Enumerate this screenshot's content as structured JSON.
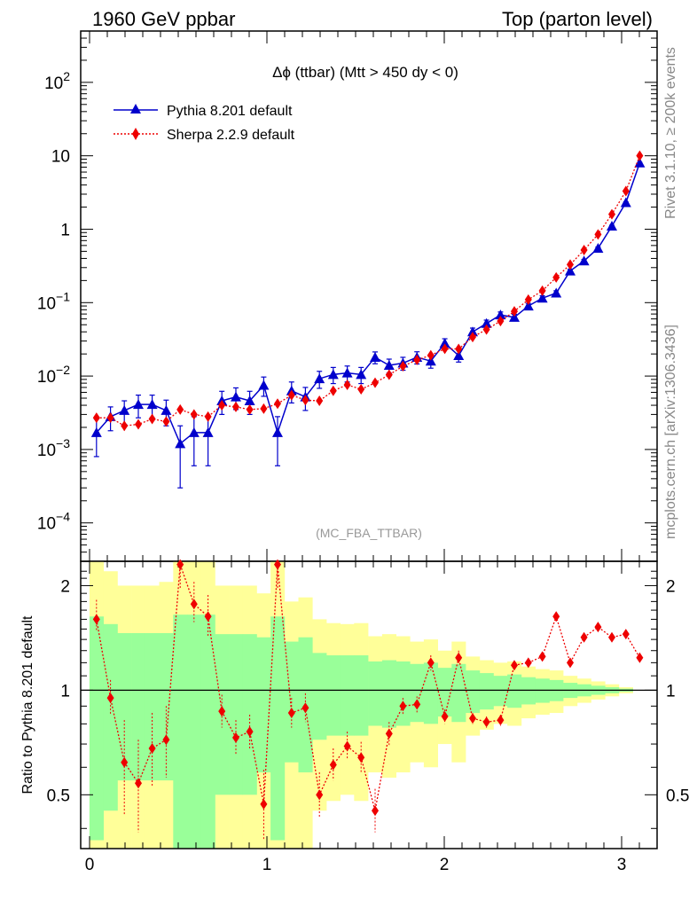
{
  "header": {
    "left_label": "1960 GeV ppbar",
    "right_label": "Top (parton level)"
  },
  "side_labels": {
    "upper": "Rivet 3.1.10, ≥ 200k events",
    "lower": "mcplots.cern.ch [arXiv:1306.3436]"
  },
  "colors": {
    "pythia": "#0000cc",
    "sherpa": "#ee0000",
    "band_inner": "#99ff99",
    "band_outer": "#ffff99"
  },
  "chart_data": [
    {
      "type": "line",
      "title": "Δϕ (ttbar) (Mtt > 450 dy < 0)",
      "watermark": "(MC_FBA_TTBAR)",
      "y_scale": "log",
      "xlim": [
        -0.05,
        3.2
      ],
      "ylim": [
        3e-05,
        500
      ],
      "legend_placement": "top-left",
      "y_ticks": [
        {
          "value": 0.0001,
          "label": "10",
          "exp": "−4"
        },
        {
          "value": 0.001,
          "label": "10",
          "exp": "−3"
        },
        {
          "value": 0.01,
          "label": "10",
          "exp": "−2"
        },
        {
          "value": 0.1,
          "label": "10",
          "exp": "−1"
        },
        {
          "value": 1,
          "label": "1",
          "exp": ""
        },
        {
          "value": 10,
          "label": "10",
          "exp": ""
        },
        {
          "value": 100,
          "label": "10",
          "exp": "2"
        }
      ],
      "x": [
        0.039,
        0.118,
        0.196,
        0.275,
        0.353,
        0.432,
        0.511,
        0.589,
        0.668,
        0.746,
        0.825,
        0.903,
        0.982,
        1.06,
        1.139,
        1.217,
        1.296,
        1.374,
        1.453,
        1.531,
        1.61,
        1.689,
        1.767,
        1.846,
        1.924,
        2.003,
        2.081,
        2.16,
        2.238,
        2.317,
        2.395,
        2.474,
        2.553,
        2.631,
        2.71,
        2.788,
        2.867,
        2.945,
        3.024,
        3.102
      ],
      "series": [
        {
          "name": "Pythia 8.201 default",
          "marker": "triangle",
          "values": [
            0.0017,
            0.0028,
            0.0034,
            0.0041,
            0.0041,
            0.0034,
            0.0012,
            0.0017,
            0.0017,
            0.0046,
            0.0052,
            0.0046,
            0.0075,
            0.0017,
            0.0063,
            0.0052,
            0.0092,
            0.0105,
            0.011,
            0.0105,
            0.018,
            0.014,
            0.015,
            0.018,
            0.016,
            0.028,
            0.019,
            0.04,
            0.052,
            0.068,
            0.063,
            0.09,
            0.115,
            0.135,
            0.27,
            0.37,
            0.55,
            1.1,
            2.3,
            8.0
          ],
          "err_up": [
            0.0009,
            0.001,
            0.0012,
            0.0014,
            0.0014,
            0.0013,
            0.0009,
            0.0011,
            0.0011,
            0.0016,
            0.0017,
            0.0016,
            0.0022,
            0.0011,
            0.002,
            0.0018,
            0.0024,
            0.0026,
            0.0027,
            0.0026,
            0.0033,
            0.003,
            0.003,
            0.0034,
            0.0032,
            0.0042,
            0.0035,
            0.005,
            0.0058,
            0.0066,
            0.0064,
            0.0078,
            0.009,
            0.01,
            0.014,
            0.018,
            0.022,
            0.032,
            0.05,
            0.12
          ]
        },
        {
          "name": "Sherpa 2.2.9 default",
          "marker": "diamond",
          "values": [
            0.0027,
            0.0027,
            0.0021,
            0.0022,
            0.0026,
            0.0024,
            0.0035,
            0.003,
            0.0028,
            0.004,
            0.0038,
            0.0035,
            0.0036,
            0.0042,
            0.0055,
            0.0047,
            0.0046,
            0.0063,
            0.0076,
            0.0066,
            0.0081,
            0.0104,
            0.0136,
            0.0166,
            0.0192,
            0.0235,
            0.0234,
            0.034,
            0.043,
            0.056,
            0.076,
            0.11,
            0.145,
            0.22,
            0.33,
            0.52,
            0.85,
            1.6,
            3.3,
            10.0
          ],
          "err_up": [
            0.0003,
            0.0003,
            0.0003,
            0.0003,
            0.0003,
            0.0003,
            0.0004,
            0.0003,
            0.0003,
            0.0004,
            0.0004,
            0.0004,
            0.0004,
            0.0004,
            0.0005,
            0.0004,
            0.0004,
            0.0005,
            0.0006,
            0.0005,
            0.0006,
            0.0007,
            0.0008,
            0.0009,
            0.001,
            0.0011,
            0.0011,
            0.0014,
            0.0016,
            0.0018,
            0.0021,
            0.0026,
            0.003,
            0.0037,
            0.0045,
            0.0057,
            0.0073,
            0.01,
            0.014,
            0.025
          ]
        }
      ]
    },
    {
      "type": "line",
      "ylabel": "Ratio to Pythia 8.201 default",
      "y_scale": "log",
      "xlim": [
        -0.05,
        3.2
      ],
      "ylim": [
        0.35,
        2.35
      ],
      "y_ticks": [
        {
          "value": 0.5,
          "label": "0.5"
        },
        {
          "value": 1,
          "label": "1"
        },
        {
          "value": 2,
          "label": "2"
        }
      ],
      "x_ticks": [
        {
          "value": 0,
          "label": "0"
        },
        {
          "value": 1,
          "label": "1"
        },
        {
          "value": 2,
          "label": "2"
        },
        {
          "value": 3,
          "label": "3"
        }
      ],
      "x": [
        0.039,
        0.118,
        0.196,
        0.275,
        0.353,
        0.432,
        0.511,
        0.589,
        0.668,
        0.746,
        0.825,
        0.903,
        0.982,
        1.06,
        1.139,
        1.217,
        1.296,
        1.374,
        1.453,
        1.531,
        1.61,
        1.689,
        1.767,
        1.846,
        1.924,
        2.003,
        2.081,
        2.16,
        2.238,
        2.317,
        2.395,
        2.474,
        2.553,
        2.631,
        2.71,
        2.788,
        2.867,
        2.945,
        3.024,
        3.102
      ],
      "band_inner": {
        "low": [
          0.37,
          0.45,
          0.55,
          0.55,
          0.55,
          0.55,
          0.35,
          0.35,
          0.35,
          0.5,
          0.5,
          0.5,
          0.58,
          0.37,
          0.62,
          0.58,
          0.72,
          0.74,
          0.74,
          0.74,
          0.79,
          0.78,
          0.79,
          0.81,
          0.8,
          0.84,
          0.81,
          0.86,
          0.88,
          0.9,
          0.89,
          0.91,
          0.92,
          0.93,
          0.95,
          0.96,
          0.97,
          0.98,
          0.99,
          1.0
        ],
        "high": [
          1.63,
          1.55,
          1.46,
          1.46,
          1.46,
          1.46,
          1.65,
          1.65,
          1.65,
          1.45,
          1.45,
          1.45,
          1.42,
          1.63,
          1.38,
          1.42,
          1.28,
          1.26,
          1.26,
          1.26,
          1.21,
          1.22,
          1.21,
          1.19,
          1.2,
          1.16,
          1.19,
          1.14,
          1.12,
          1.1,
          1.11,
          1.09,
          1.08,
          1.07,
          1.05,
          1.04,
          1.03,
          1.02,
          1.01,
          1.0
        ]
      },
      "band_outer": {
        "low": [
          0.35,
          0.35,
          0.35,
          0.35,
          0.35,
          0.35,
          0.35,
          0.35,
          0.35,
          0.35,
          0.35,
          0.35,
          0.35,
          0.35,
          0.35,
          0.35,
          0.45,
          0.48,
          0.5,
          0.48,
          0.58,
          0.56,
          0.58,
          0.62,
          0.6,
          0.7,
          0.62,
          0.74,
          0.77,
          0.8,
          0.79,
          0.83,
          0.85,
          0.86,
          0.9,
          0.92,
          0.94,
          0.96,
          0.98,
          1.0
        ],
        "high": [
          2.35,
          2.2,
          2.0,
          2.0,
          2.0,
          2.05,
          2.35,
          2.35,
          2.35,
          2.0,
          2.0,
          2.0,
          1.9,
          2.35,
          1.8,
          1.85,
          1.6,
          1.56,
          1.55,
          1.56,
          1.43,
          1.45,
          1.43,
          1.38,
          1.4,
          1.3,
          1.38,
          1.25,
          1.22,
          1.2,
          1.21,
          1.17,
          1.15,
          1.14,
          1.1,
          1.08,
          1.06,
          1.04,
          1.02,
          1.0
        ]
      },
      "series": [
        {
          "name": "Sherpa 2.2.9 default",
          "values": [
            1.6,
            0.95,
            0.62,
            0.54,
            0.68,
            0.72,
            2.3,
            1.77,
            1.63,
            0.87,
            0.73,
            0.76,
            0.47,
            2.3,
            0.86,
            0.89,
            0.5,
            0.61,
            0.69,
            0.64,
            0.45,
            0.75,
            0.9,
            0.91,
            1.2,
            0.84,
            1.24,
            0.83,
            0.81,
            0.82,
            1.18,
            1.2,
            1.25,
            1.63,
            1.2,
            1.42,
            1.52,
            1.42,
            1.45,
            1.24
          ],
          "err_lo": [
            0.12,
            0.1,
            0.18,
            0.15,
            0.15,
            0.16,
            0.35,
            0.2,
            0.2,
            0.09,
            0.08,
            0.08,
            0.1,
            0.35,
            0.08,
            0.08,
            0.07,
            0.06,
            0.06,
            0.06,
            0.06,
            0.06,
            0.05,
            0.05,
            0.06,
            0.04,
            0.06,
            0.03,
            0.03,
            0.03,
            0.03,
            0.03,
            0.02,
            0.03,
            0.02,
            0.02,
            0.02,
            0.01,
            0.01,
            0.01
          ],
          "err_hi": [
            0.22,
            0.12,
            0.2,
            0.18,
            0.18,
            0.18,
            0.35,
            0.28,
            0.25,
            0.1,
            0.09,
            0.09,
            0.12,
            0.35,
            0.09,
            0.09,
            0.08,
            0.07,
            0.07,
            0.07,
            0.07,
            0.06,
            0.05,
            0.05,
            0.06,
            0.04,
            0.06,
            0.03,
            0.03,
            0.03,
            0.03,
            0.03,
            0.02,
            0.03,
            0.02,
            0.02,
            0.02,
            0.01,
            0.01,
            0.01
          ]
        }
      ]
    }
  ]
}
